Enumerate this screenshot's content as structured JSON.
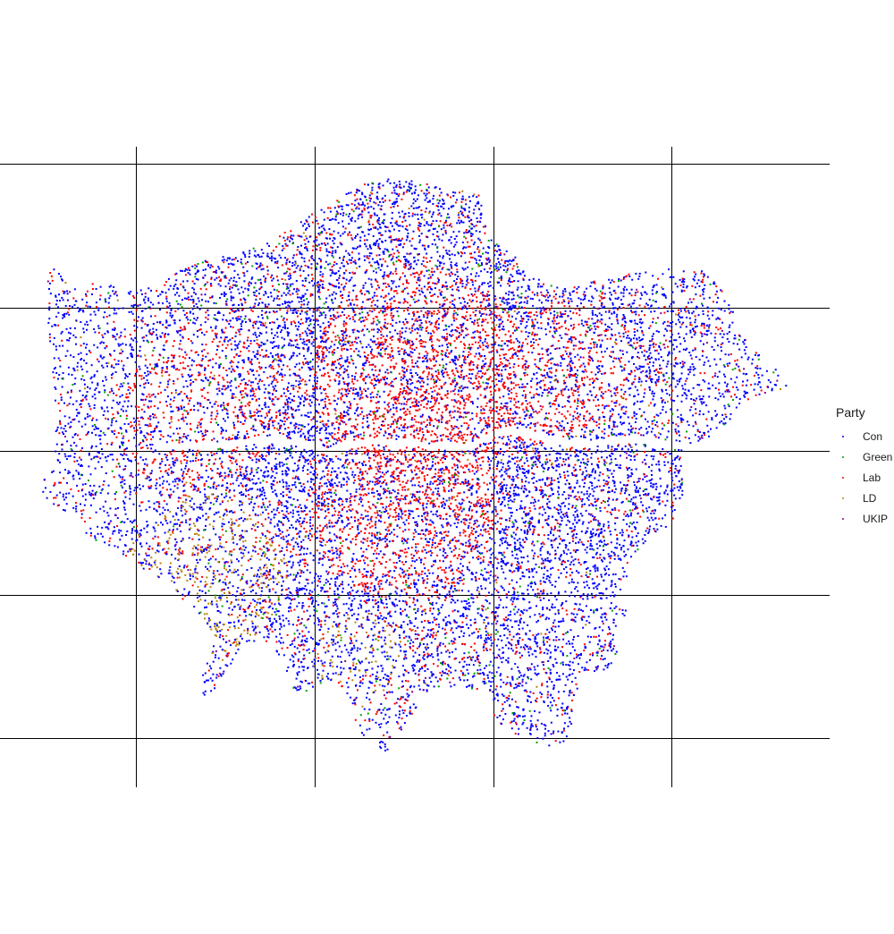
{
  "legend": {
    "title": "Party",
    "items": [
      {
        "label": "Con",
        "color": "#0000ff",
        "icon": "dot"
      },
      {
        "label": "Green",
        "color": "#00a000",
        "icon": "dot"
      },
      {
        "label": "Lab",
        "color": "#ff0000",
        "icon": "dot"
      },
      {
        "label": "LD",
        "color": "#b8860b",
        "icon": "dot"
      },
      {
        "label": "UKIP",
        "color": "#8b008b",
        "icon": "dot"
      }
    ]
  },
  "map": {
    "description_type": "dot-density map of votes by party",
    "grid": true,
    "grid_color": "#000000"
  }
}
